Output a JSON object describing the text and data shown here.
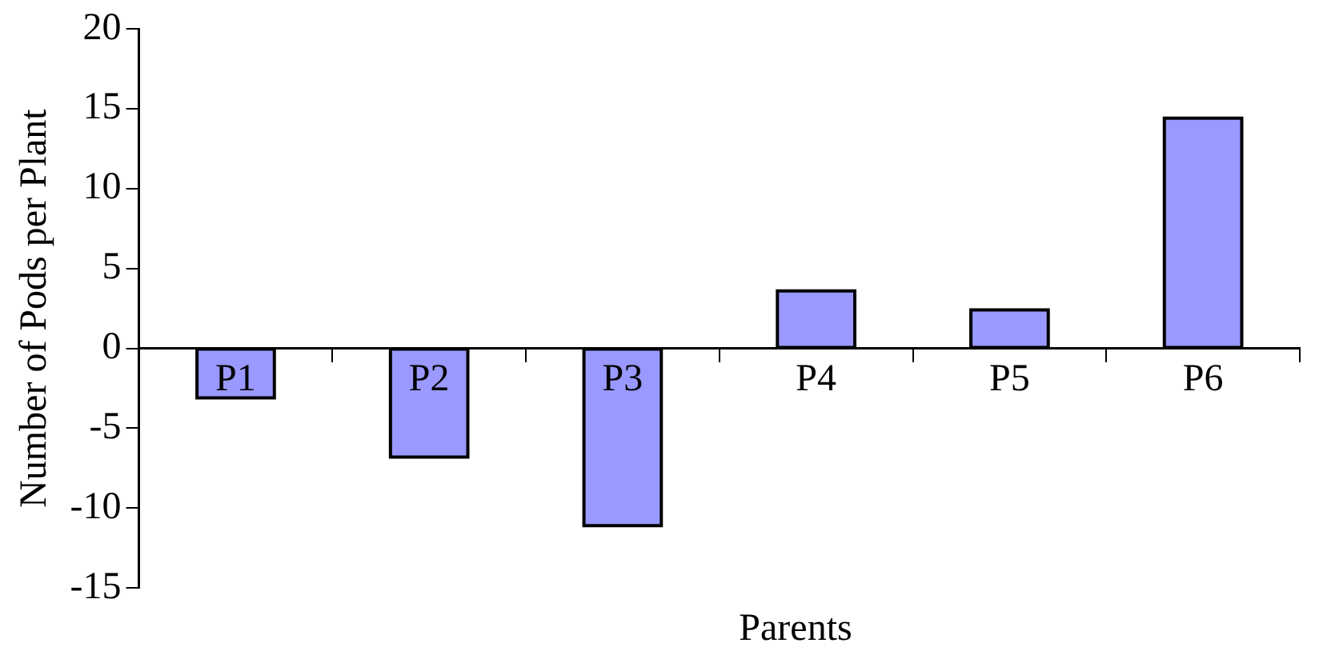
{
  "chart_data": {
    "type": "bar",
    "xlabel": "Parents",
    "ylabel": "Number of Pods per Plant",
    "categories": [
      "P1",
      "P2",
      "P3",
      "P4",
      "P5",
      "P6"
    ],
    "values": [
      -3.1,
      -6.8,
      -11.1,
      3.6,
      2.4,
      14.4
    ],
    "color": "#9999ff",
    "ylim": [
      -15,
      20
    ],
    "yticks": [
      -15,
      -10,
      -5,
      0,
      5,
      10,
      15,
      20
    ],
    "grid": false,
    "legend": false
  }
}
